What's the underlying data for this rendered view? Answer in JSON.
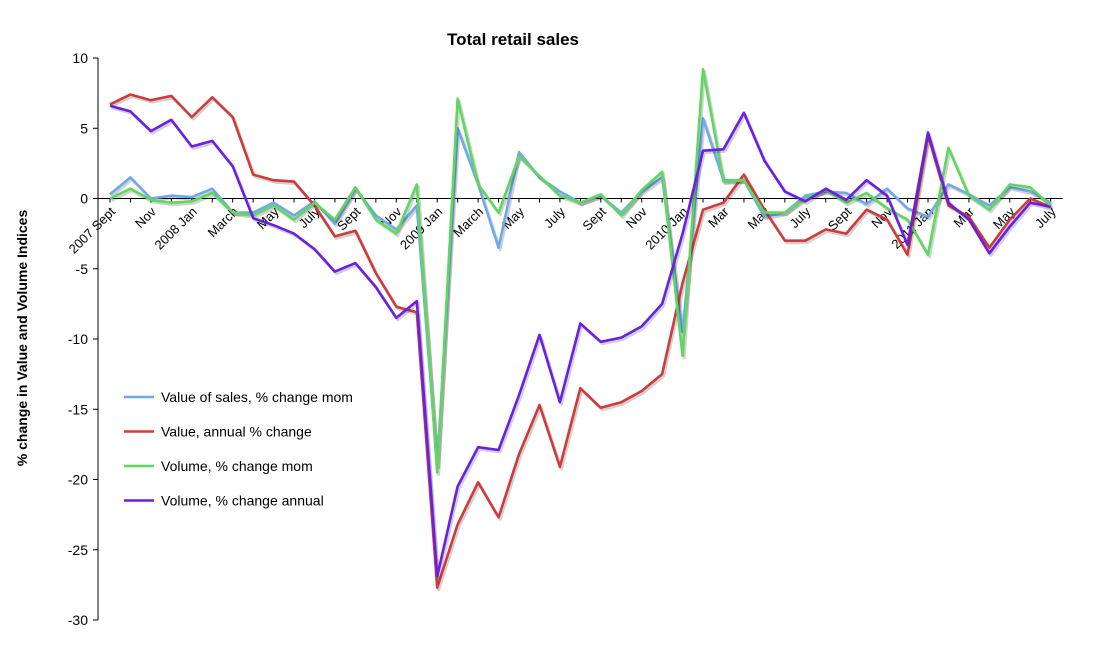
{
  "chart_data": {
    "type": "line",
    "title": "Total retail sales",
    "xlabel": "",
    "ylabel": "% change in Value and Volume Indices",
    "ylim": [
      -30,
      10
    ],
    "yticks": [
      10,
      5,
      0,
      -5,
      -10,
      -15,
      -20,
      -25,
      -30
    ],
    "legend_position": "bottom-left",
    "x_labels": [
      {
        "i": 0,
        "label": "2007 Sept"
      },
      {
        "i": 2,
        "label": "Nov"
      },
      {
        "i": 4,
        "label": "2008 Jan"
      },
      {
        "i": 6,
        "label": "March"
      },
      {
        "i": 8,
        "label": "May"
      },
      {
        "i": 10,
        "label": "July"
      },
      {
        "i": 12,
        "label": "Sept"
      },
      {
        "i": 14,
        "label": "Nov"
      },
      {
        "i": 16,
        "label": "2009 Jan"
      },
      {
        "i": 18,
        "label": "March"
      },
      {
        "i": 20,
        "label": "May"
      },
      {
        "i": 22,
        "label": "July"
      },
      {
        "i": 24,
        "label": "Sept"
      },
      {
        "i": 26,
        "label": "Nov"
      },
      {
        "i": 28,
        "label": "2010 Jan"
      },
      {
        "i": 30,
        "label": "Mar"
      },
      {
        "i": 32,
        "label": "May"
      },
      {
        "i": 34,
        "label": "July"
      },
      {
        "i": 36,
        "label": "Sept"
      },
      {
        "i": 38,
        "label": "Nov"
      },
      {
        "i": 40,
        "label": "2011 Jan"
      },
      {
        "i": 42,
        "label": "Mar"
      },
      {
        "i": 44,
        "label": "May"
      },
      {
        "i": 46,
        "label": "July"
      }
    ],
    "series": [
      {
        "name": "Value of sales, % change mom",
        "color": "#6fa8ee",
        "values": [
          0.3,
          1.5,
          0.0,
          0.2,
          0.1,
          0.7,
          -1.0,
          -1.0,
          -0.3,
          -1.2,
          -0.2,
          -1.8,
          0.7,
          -1.2,
          -2.2,
          -0.5,
          -19.0,
          5.0,
          1.0,
          -3.5,
          3.3,
          1.5,
          0.5,
          -0.3,
          0.2,
          -1.0,
          0.5,
          1.5,
          -9.5,
          5.7,
          1.3,
          1.3,
          -1.3,
          -1.0,
          0.2,
          0.5,
          0.4,
          -0.4,
          0.7,
          -0.7,
          -1.3,
          1.0,
          0.3,
          -0.5,
          0.8,
          0.5,
          -0.3
        ]
      },
      {
        "name": "Value, annual % change",
        "color": "#d23a3a",
        "values": [
          6.7,
          7.4,
          7.0,
          7.3,
          5.8,
          7.2,
          5.8,
          1.7,
          1.3,
          1.2,
          -0.5,
          -2.7,
          -2.3,
          -5.3,
          -7.7,
          -8.1,
          -27.7,
          -23.2,
          -20.2,
          -22.7,
          -18.2,
          -14.7,
          -19.1,
          -13.5,
          -14.9,
          -14.5,
          -13.7,
          -12.5,
          -6.0,
          -0.8,
          -0.3,
          1.7,
          -0.8,
          -3.0,
          -3.0,
          -2.2,
          -2.5,
          -0.8,
          -1.5,
          -4.0,
          4.5,
          -0.5,
          -1.3,
          -3.5,
          -1.5,
          0.0,
          -0.6
        ]
      },
      {
        "name": "Volume, % change mom",
        "color": "#5fd85f",
        "values": [
          0.0,
          0.7,
          -0.1,
          -0.3,
          -0.2,
          0.4,
          -1.0,
          -1.2,
          -0.5,
          -1.5,
          -0.3,
          -1.5,
          0.8,
          -1.5,
          -2.5,
          1.0,
          -19.5,
          7.1,
          1.0,
          -1.0,
          3.0,
          1.6,
          0.2,
          -0.3,
          0.3,
          -1.2,
          0.6,
          1.9,
          -11.2,
          9.2,
          1.2,
          1.3,
          -1.0,
          -1.0,
          0.0,
          0.6,
          -0.3,
          0.4,
          -0.7,
          -1.5,
          -4.0,
          3.6,
          0.2,
          -0.8,
          1.0,
          0.8,
          -0.5
        ]
      },
      {
        "name": "Volume, % change annual",
        "color": "#6a1ee8",
        "values": [
          6.6,
          6.2,
          4.8,
          5.6,
          3.7,
          4.1,
          2.3,
          -1.4,
          -1.9,
          -2.5,
          -3.6,
          -5.2,
          -4.6,
          -6.3,
          -8.5,
          -7.3,
          -26.9,
          -20.5,
          -17.7,
          -17.9,
          -14.0,
          -9.7,
          -14.5,
          -8.9,
          -10.2,
          -9.9,
          -9.1,
          -7.5,
          -2.5,
          3.4,
          3.5,
          6.1,
          2.7,
          0.5,
          -0.2,
          0.7,
          -0.1,
          1.3,
          0.2,
          -3.3,
          4.7,
          -0.3,
          -1.5,
          -3.9,
          -2.0,
          -0.3,
          -0.6
        ]
      }
    ]
  }
}
